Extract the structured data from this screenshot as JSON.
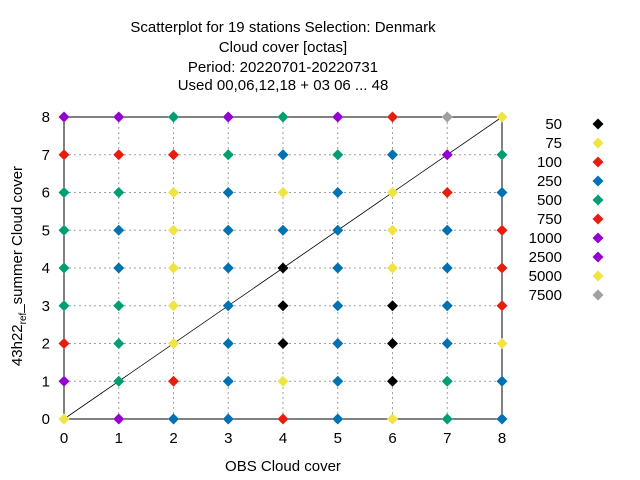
{
  "chart_data": {
    "type": "scatter",
    "title_lines": [
      "Scatterplot for   19 stations Selection: Denmark",
      "Cloud cover [octas]",
      "Period: 20220701-20220731",
      "Used  00,06,12,18  + 03 06 ... 48"
    ],
    "xlabel": "OBS Cloud cover",
    "ylabel": "43h22_ref_summer Cloud cover",
    "xlim": [
      0,
      8
    ],
    "ylim": [
      0,
      8
    ],
    "xticks": [
      "0",
      "1",
      "2",
      "3",
      "4",
      "5",
      "6",
      "7",
      "8"
    ],
    "yticks": [
      "0",
      "1",
      "2",
      "3",
      "4",
      "5",
      "6",
      "7",
      "8"
    ],
    "grid": true,
    "diagonal": true,
    "legend_position": "right",
    "legend": [
      {
        "label": "50",
        "color": "#000000"
      },
      {
        "label": "75",
        "color": "#f0e442"
      },
      {
        "label": "100",
        "color": "#e51e10"
      },
      {
        "label": "250",
        "color": "#0072b2"
      },
      {
        "label": "500",
        "color": "#009e73"
      },
      {
        "label": "750",
        "color": "#e51e10"
      },
      {
        "label": "1000",
        "color": "#9400d3"
      },
      {
        "label": "2500",
        "color": "#9400d3"
      },
      {
        "label": "5000",
        "color": "#f0e442"
      },
      {
        "label": "7500",
        "color": "#a0a0a0"
      }
    ],
    "points": [
      {
        "x": 0,
        "y": 8,
        "color": "#9400d3"
      },
      {
        "x": 0,
        "y": 7,
        "color": "#e51e10"
      },
      {
        "x": 0,
        "y": 6,
        "color": "#009e73"
      },
      {
        "x": 0,
        "y": 5,
        "color": "#009e73"
      },
      {
        "x": 0,
        "y": 4,
        "color": "#009e73"
      },
      {
        "x": 0,
        "y": 3,
        "color": "#009e73"
      },
      {
        "x": 0,
        "y": 2,
        "color": "#e51e10"
      },
      {
        "x": 0,
        "y": 1,
        "color": "#9400d3"
      },
      {
        "x": 0,
        "y": 0,
        "color": "#f0e442"
      },
      {
        "x": 1,
        "y": 8,
        "color": "#9400d3"
      },
      {
        "x": 1,
        "y": 7,
        "color": "#e51e10"
      },
      {
        "x": 1,
        "y": 6,
        "color": "#009e73"
      },
      {
        "x": 1,
        "y": 5,
        "color": "#0072b2"
      },
      {
        "x": 1,
        "y": 4,
        "color": "#0072b2"
      },
      {
        "x": 1,
        "y": 3,
        "color": "#009e73"
      },
      {
        "x": 1,
        "y": 2,
        "color": "#009e73"
      },
      {
        "x": 1,
        "y": 1,
        "color": "#009e73"
      },
      {
        "x": 1,
        "y": 0,
        "color": "#9400d3"
      },
      {
        "x": 2,
        "y": 8,
        "color": "#009e73"
      },
      {
        "x": 2,
        "y": 7,
        "color": "#e51e10"
      },
      {
        "x": 2,
        "y": 6,
        "color": "#f0e442"
      },
      {
        "x": 2,
        "y": 5,
        "color": "#f0e442"
      },
      {
        "x": 2,
        "y": 4,
        "color": "#f0e442"
      },
      {
        "x": 2,
        "y": 3,
        "color": "#f0e442"
      },
      {
        "x": 2,
        "y": 2,
        "color": "#f0e442"
      },
      {
        "x": 2,
        "y": 1,
        "color": "#e51e10"
      },
      {
        "x": 2,
        "y": 0,
        "color": "#0072b2"
      },
      {
        "x": 3,
        "y": 8,
        "color": "#9400d3"
      },
      {
        "x": 3,
        "y": 7,
        "color": "#009e73"
      },
      {
        "x": 3,
        "y": 6,
        "color": "#0072b2"
      },
      {
        "x": 3,
        "y": 5,
        "color": "#0072b2"
      },
      {
        "x": 3,
        "y": 4,
        "color": "#0072b2"
      },
      {
        "x": 3,
        "y": 3,
        "color": "#0072b2"
      },
      {
        "x": 3,
        "y": 2,
        "color": "#0072b2"
      },
      {
        "x": 3,
        "y": 1,
        "color": "#0072b2"
      },
      {
        "x": 3,
        "y": 0,
        "color": "#0072b2"
      },
      {
        "x": 4,
        "y": 8,
        "color": "#009e73"
      },
      {
        "x": 4,
        "y": 7,
        "color": "#0072b2"
      },
      {
        "x": 4,
        "y": 6,
        "color": "#f0e442"
      },
      {
        "x": 4,
        "y": 5,
        "color": "#0072b2"
      },
      {
        "x": 4,
        "y": 4,
        "color": "#000000"
      },
      {
        "x": 4,
        "y": 3,
        "color": "#000000"
      },
      {
        "x": 4,
        "y": 2,
        "color": "#000000"
      },
      {
        "x": 4,
        "y": 1,
        "color": "#f0e442"
      },
      {
        "x": 4,
        "y": 0,
        "color": "#e51e10"
      },
      {
        "x": 5,
        "y": 8,
        "color": "#9400d3"
      },
      {
        "x": 5,
        "y": 7,
        "color": "#009e73"
      },
      {
        "x": 5,
        "y": 6,
        "color": "#0072b2"
      },
      {
        "x": 5,
        "y": 5,
        "color": "#0072b2"
      },
      {
        "x": 5,
        "y": 4,
        "color": "#0072b2"
      },
      {
        "x": 5,
        "y": 3,
        "color": "#0072b2"
      },
      {
        "x": 5,
        "y": 2,
        "color": "#0072b2"
      },
      {
        "x": 5,
        "y": 1,
        "color": "#0072b2"
      },
      {
        "x": 5,
        "y": 0,
        "color": "#0072b2"
      },
      {
        "x": 6,
        "y": 8,
        "color": "#e51e10"
      },
      {
        "x": 6,
        "y": 7,
        "color": "#0072b2"
      },
      {
        "x": 6,
        "y": 6,
        "color": "#f0e442"
      },
      {
        "x": 6,
        "y": 5,
        "color": "#f0e442"
      },
      {
        "x": 6,
        "y": 4,
        "color": "#f0e442"
      },
      {
        "x": 6,
        "y": 3,
        "color": "#000000"
      },
      {
        "x": 6,
        "y": 2,
        "color": "#000000"
      },
      {
        "x": 6,
        "y": 1,
        "color": "#000000"
      },
      {
        "x": 6,
        "y": 0,
        "color": "#f0e442"
      },
      {
        "x": 7,
        "y": 8,
        "color": "#a0a0a0"
      },
      {
        "x": 7,
        "y": 7,
        "color": "#9400d3"
      },
      {
        "x": 7,
        "y": 6,
        "color": "#e51e10"
      },
      {
        "x": 7,
        "y": 5,
        "color": "#0072b2"
      },
      {
        "x": 7,
        "y": 4,
        "color": "#0072b2"
      },
      {
        "x": 7,
        "y": 3,
        "color": "#0072b2"
      },
      {
        "x": 7,
        "y": 2,
        "color": "#0072b2"
      },
      {
        "x": 7,
        "y": 1,
        "color": "#009e73"
      },
      {
        "x": 7,
        "y": 0,
        "color": "#009e73"
      },
      {
        "x": 8,
        "y": 8,
        "color": "#f0e442"
      },
      {
        "x": 8,
        "y": 7,
        "color": "#009e73"
      },
      {
        "x": 8,
        "y": 6,
        "color": "#0072b2"
      },
      {
        "x": 8,
        "y": 5,
        "color": "#e51e10"
      },
      {
        "x": 8,
        "y": 4,
        "color": "#e51e10"
      },
      {
        "x": 8,
        "y": 3,
        "color": "#e51e10"
      },
      {
        "x": 8,
        "y": 2,
        "color": "#f0e442"
      },
      {
        "x": 8,
        "y": 1,
        "color": "#0072b2"
      },
      {
        "x": 8,
        "y": 0,
        "color": "#0072b2"
      }
    ]
  }
}
